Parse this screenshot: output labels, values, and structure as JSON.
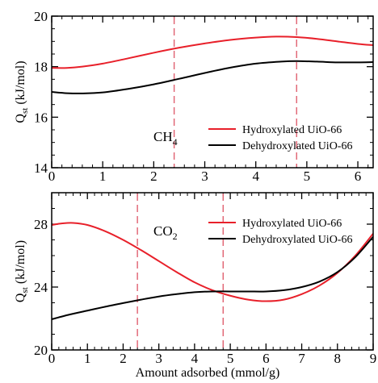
{
  "chart_data": [
    {
      "type": "line",
      "gas_label": {
        "main": "CH",
        "sub": "4"
      },
      "ylabel": {
        "main": "Q",
        "sub": "st",
        "rest": " (kJ/mol)"
      },
      "xlabel": "",
      "xlim": [
        0,
        6.3
      ],
      "ylim": [
        14,
        20
      ],
      "xticks": [
        0,
        1,
        2,
        3,
        4,
        5,
        6
      ],
      "yticks": [
        14,
        16,
        18,
        20
      ],
      "x_minor_step": 0.2,
      "y_minor_step": 0.5,
      "vlines": [
        2.4,
        4.8
      ],
      "legend_position": "middle-right",
      "series": [
        {
          "name": "Hydroxylated UiO-66",
          "color": "#e8202a",
          "x": [
            0,
            0.3,
            0.6,
            1.0,
            1.5,
            2.0,
            2.5,
            3.0,
            3.5,
            4.0,
            4.4,
            4.8,
            5.2,
            5.6,
            6.0,
            6.3
          ],
          "y": [
            17.95,
            17.95,
            18.0,
            18.12,
            18.33,
            18.55,
            18.75,
            18.92,
            19.06,
            19.15,
            19.19,
            19.17,
            19.1,
            19.0,
            18.9,
            18.85
          ]
        },
        {
          "name": "Dehydroxylated UiO-66",
          "color": "#000000",
          "x": [
            0,
            0.3,
            0.6,
            1.0,
            1.5,
            2.0,
            2.5,
            3.0,
            3.5,
            4.0,
            4.5,
            4.8,
            5.2,
            5.6,
            6.0,
            6.3
          ],
          "y": [
            17.0,
            16.95,
            16.94,
            16.98,
            17.12,
            17.3,
            17.52,
            17.75,
            17.96,
            18.12,
            18.2,
            18.22,
            18.2,
            18.17,
            18.17,
            18.18
          ]
        }
      ]
    },
    {
      "type": "line",
      "gas_label": {
        "main": "CO",
        "sub": "2"
      },
      "ylabel": {
        "main": "Q",
        "sub": "st",
        "rest": " (kJ/mol)"
      },
      "xlabel": "Amount adsorbed (mmol/g)",
      "xlim": [
        0,
        9
      ],
      "ylim": [
        20,
        30
      ],
      "xticks": [
        0,
        1,
        2,
        3,
        4,
        5,
        6,
        7,
        8,
        9
      ],
      "yticks": [
        20,
        24,
        28
      ],
      "x_minor_step": 0.2,
      "y_minor_step": 1,
      "vlines": [
        2.4,
        4.8
      ],
      "legend_position": "top-right",
      "series": [
        {
          "name": "Hydroxylated UiO-66",
          "color": "#e8202a",
          "x": [
            0,
            0.3,
            0.6,
            1.0,
            1.5,
            2.0,
            2.5,
            3.0,
            3.5,
            4.0,
            4.5,
            5.0,
            5.5,
            6.0,
            6.5,
            7.0,
            7.5,
            8.0,
            8.5,
            9.0
          ],
          "y": [
            27.95,
            28.05,
            28.08,
            27.95,
            27.55,
            27.0,
            26.35,
            25.65,
            24.95,
            24.3,
            23.8,
            23.45,
            23.2,
            23.1,
            23.2,
            23.55,
            24.1,
            24.9,
            26.0,
            27.4
          ]
        },
        {
          "name": "Dehydroxylated UiO-66",
          "color": "#000000",
          "x": [
            0,
            0.5,
            1.0,
            1.5,
            2.0,
            2.5,
            3.0,
            3.5,
            4.0,
            4.5,
            5.0,
            5.5,
            6.0,
            6.5,
            7.0,
            7.5,
            8.0,
            8.5,
            9.0
          ],
          "y": [
            21.95,
            22.25,
            22.5,
            22.75,
            22.98,
            23.2,
            23.4,
            23.55,
            23.67,
            23.72,
            23.72,
            23.72,
            23.72,
            23.8,
            24.0,
            24.35,
            24.95,
            25.9,
            27.2
          ]
        }
      ]
    }
  ]
}
